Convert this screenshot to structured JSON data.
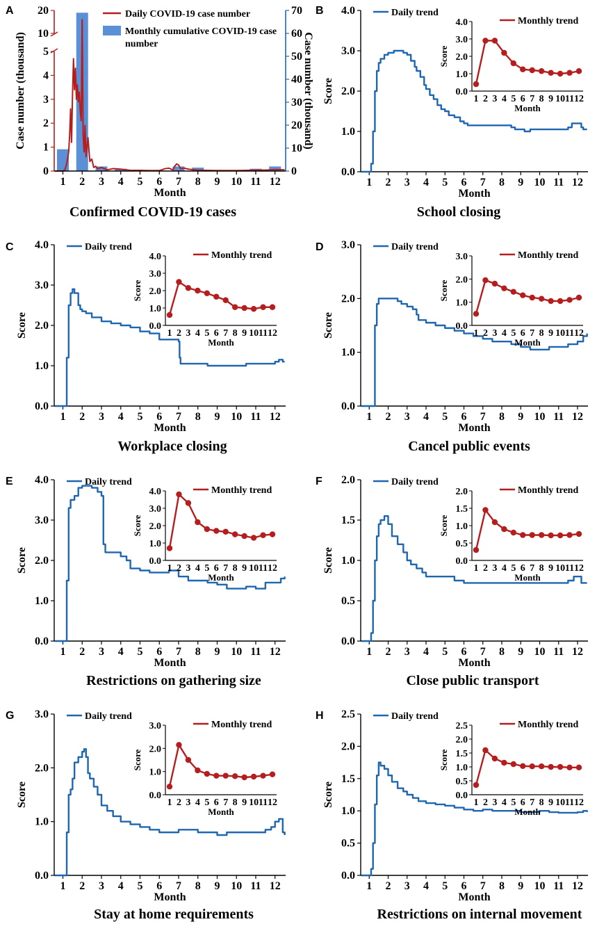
{
  "colors": {
    "daily": "#1f66b0",
    "monthly": "#b41e1e",
    "bar": "#5b8fd6",
    "axis": "#000000"
  },
  "chart_data": [
    {
      "panel": "A",
      "type": "bar",
      "caption": "Confirmed COVID-19 cases",
      "xlabel": "Month",
      "ylabel_left": "Case number (thousand)",
      "ylabel_right": "Case number (thousand)",
      "categories": [
        "1",
        "2",
        "3",
        "4",
        "5",
        "6",
        "7",
        "8",
        "9",
        "10",
        "11",
        "12"
      ],
      "left_ticks": [
        "0",
        "1",
        "2",
        "3",
        "4",
        "5",
        "10",
        "20"
      ],
      "right_ticks": [
        "0",
        "10",
        "20",
        "30",
        "40",
        "50",
        "60",
        "70"
      ],
      "right_ylim": [
        0,
        70
      ],
      "series": [
        {
          "name": "Daily  COVID-19 case number",
          "type": "line",
          "x": [
            0.6,
            0.8,
            1.0,
            1.1,
            1.2,
            1.3,
            1.35,
            1.4,
            1.45,
            1.5,
            1.55,
            1.6,
            1.65,
            1.7,
            1.75,
            1.8,
            1.85,
            1.9,
            1.95,
            2.0,
            2.05,
            2.1,
            2.15,
            2.2,
            2.3,
            2.4,
            2.5,
            2.6,
            2.7,
            2.8,
            3.0,
            3.3,
            3.6,
            4.0,
            4.5,
            5.0,
            5.5,
            6.0,
            6.3,
            6.5,
            6.7,
            6.8,
            6.9,
            7.0,
            7.1,
            7.3,
            7.5,
            7.8,
            8.0,
            8.5,
            9.0,
            9.5,
            10.0,
            10.5,
            11.0,
            11.5,
            12.0,
            12.5
          ],
          "values": [
            0,
            0,
            0,
            0.05,
            0.3,
            0.8,
            1.5,
            2.6,
            1.2,
            3.2,
            4.7,
            3.4,
            4.3,
            3.0,
            3.6,
            2.9,
            3.3,
            2.5,
            2.1,
            16.0,
            1.5,
            0.8,
            1.9,
            0.6,
            1.4,
            0.4,
            0.5,
            0.15,
            0.2,
            0.1,
            0.15,
            0.05,
            0.1,
            0.08,
            0.03,
            0.03,
            0.02,
            0.02,
            0.1,
            0.12,
            0.05,
            0.2,
            0.3,
            0.25,
            0.1,
            0.12,
            0.08,
            0.05,
            0.04,
            0.03,
            0.02,
            0.02,
            0.02,
            0.03,
            0.04,
            0.04,
            0.06,
            0.05
          ]
        },
        {
          "name": "Monthly cumulative COVID-19 case number",
          "type": "bar",
          "values": [
            9.5,
            69,
            2,
            1,
            0.1,
            0.2,
            2,
            1.5,
            0.4,
            0.3,
            1,
            2
          ]
        }
      ]
    },
    {
      "panel": "B",
      "type": "line",
      "caption": "School closing",
      "xlabel": "Month",
      "ylabel": "Score",
      "ymax": 4,
      "yticks": [
        "0.0",
        "1.0",
        "2.0",
        "3.0",
        "4.0"
      ],
      "inset_ymax": 4,
      "inset_yticks": [
        "0.0",
        "1.0",
        "2.0",
        "3.0",
        "4.0"
      ],
      "legend_daily": "Daily trend",
      "legend_monthly": "Monthly trend",
      "categories": [
        "1",
        "2",
        "3",
        "4",
        "5",
        "6",
        "7",
        "8",
        "9",
        "10",
        "11",
        "12"
      ],
      "daily": {
        "x": [
          0.6,
          1.0,
          1.1,
          1.2,
          1.3,
          1.4,
          1.5,
          1.6,
          1.8,
          2.0,
          2.3,
          2.5,
          2.8,
          3.0,
          3.2,
          3.4,
          3.5,
          3.7,
          3.9,
          4.0,
          4.2,
          4.4,
          4.6,
          4.8,
          5.0,
          5.2,
          5.5,
          5.8,
          6.0,
          6.2,
          6.5,
          7.0,
          7.5,
          8.0,
          8.5,
          8.7,
          9.0,
          9.2,
          9.5,
          10.0,
          10.5,
          11.0,
          11.5,
          11.7,
          12.0,
          12.2,
          12.3,
          12.5
        ],
        "y": [
          0,
          0,
          0.2,
          1.0,
          2.0,
          2.5,
          2.7,
          2.8,
          2.9,
          2.95,
          3.0,
          3.0,
          2.95,
          2.9,
          2.75,
          2.6,
          2.5,
          2.35,
          2.15,
          2.05,
          1.9,
          1.8,
          1.65,
          1.55,
          1.5,
          1.4,
          1.35,
          1.25,
          1.2,
          1.15,
          1.15,
          1.15,
          1.15,
          1.15,
          1.1,
          1.05,
          1.05,
          1.0,
          1.05,
          1.05,
          1.05,
          1.05,
          1.1,
          1.2,
          1.2,
          1.1,
          1.05,
          1.05
        ]
      },
      "monthly": [
        0.4,
        2.9,
        2.9,
        2.2,
        1.6,
        1.25,
        1.2,
        1.15,
        1.05,
        1.0,
        1.05,
        1.15
      ]
    },
    {
      "panel": "C",
      "type": "line",
      "caption": "Workplace closing",
      "xlabel": "Month",
      "ylabel": "Score",
      "ymax": 4,
      "yticks": [
        "0.0",
        "1.0",
        "2.0",
        "3.0",
        "4.0"
      ],
      "inset_ymax": 4,
      "inset_yticks": [
        "0.0",
        "1.0",
        "2.0",
        "3.0",
        "4.0"
      ],
      "legend_daily": "Daily trend",
      "legend_monthly": "Monthly trend",
      "categories": [
        "1",
        "2",
        "3",
        "4",
        "5",
        "6",
        "7",
        "8",
        "9",
        "10",
        "11",
        "12"
      ],
      "daily": {
        "x": [
          0.6,
          1.1,
          1.2,
          1.3,
          1.4,
          1.5,
          1.6,
          1.8,
          1.9,
          2.0,
          2.2,
          2.5,
          3.0,
          3.5,
          4.0,
          4.5,
          5.0,
          5.5,
          6.0,
          6.5,
          6.9,
          7.0,
          7.05,
          7.1,
          7.5,
          8.0,
          8.5,
          9.0,
          9.5,
          10.0,
          10.5,
          11.0,
          11.5,
          12.0,
          12.2,
          12.4,
          12.5
        ],
        "y": [
          0,
          0,
          1.2,
          2.5,
          2.8,
          2.9,
          2.8,
          2.5,
          2.4,
          2.35,
          2.3,
          2.2,
          2.1,
          2.05,
          2.0,
          1.95,
          1.85,
          1.8,
          1.65,
          1.65,
          1.65,
          1.6,
          1.2,
          1.05,
          1.05,
          1.05,
          1.0,
          1.0,
          1.0,
          1.0,
          1.05,
          1.05,
          1.05,
          1.1,
          1.15,
          1.1,
          1.1
        ]
      },
      "monthly": [
        0.6,
        2.5,
        2.15,
        2.0,
        1.85,
        1.65,
        1.45,
        1.05,
        1.0,
        0.95,
        1.05,
        1.05
      ]
    },
    {
      "panel": "D",
      "type": "line",
      "caption": "Cancel public events",
      "xlabel": "Month",
      "ylabel": "Score",
      "ymax": 3,
      "yticks": [
        "0.0",
        "1.0",
        "2.0",
        "3.0"
      ],
      "inset_ymax": 3,
      "inset_yticks": [
        "0.0",
        "1.0",
        "2.0",
        "3.0"
      ],
      "legend_daily": "Daily trend",
      "legend_monthly": "Monthly trend",
      "categories": [
        "1",
        "2",
        "3",
        "4",
        "5",
        "6",
        "7",
        "8",
        "9",
        "10",
        "11",
        "12"
      ],
      "daily": {
        "x": [
          0.6,
          1.2,
          1.3,
          1.4,
          1.5,
          2.0,
          2.5,
          2.7,
          3.0,
          3.3,
          3.5,
          3.6,
          4.0,
          4.5,
          5.0,
          5.5,
          6.0,
          6.5,
          7.0,
          7.5,
          8.0,
          8.5,
          9.0,
          9.5,
          10.0,
          10.5,
          11.0,
          11.5,
          12.0,
          12.3,
          12.5
        ],
        "y": [
          0,
          0,
          1.5,
          1.9,
          2.0,
          2.0,
          1.95,
          1.9,
          1.85,
          1.8,
          1.7,
          1.6,
          1.55,
          1.5,
          1.45,
          1.4,
          1.35,
          1.3,
          1.25,
          1.2,
          1.2,
          1.15,
          1.1,
          1.05,
          1.05,
          1.1,
          1.1,
          1.15,
          1.2,
          1.3,
          1.35
        ]
      },
      "monthly": [
        0.5,
        1.95,
        1.8,
        1.6,
        1.45,
        1.3,
        1.2,
        1.15,
        1.05,
        1.05,
        1.1,
        1.2
      ]
    },
    {
      "panel": "E",
      "type": "line",
      "caption": "Restrictions on gathering size",
      "xlabel": "Month",
      "ylabel": "Score",
      "ymax": 4,
      "yticks": [
        "0.0",
        "1.0",
        "2.0",
        "3.0",
        "4.0"
      ],
      "inset_ymax": 4,
      "inset_yticks": [
        "0.0",
        "1.0",
        "2.0",
        "3.0",
        "4.0"
      ],
      "legend_daily": "Daily trend",
      "legend_monthly": "Monthly trend",
      "categories": [
        "1",
        "2",
        "3",
        "4",
        "5",
        "6",
        "7",
        "8",
        "9",
        "10",
        "11",
        "12"
      ],
      "daily": {
        "x": [
          0.6,
          1.1,
          1.2,
          1.3,
          1.4,
          1.6,
          1.8,
          2.0,
          2.2,
          2.5,
          2.8,
          3.0,
          3.1,
          3.2,
          3.5,
          4.0,
          4.3,
          4.5,
          5.0,
          5.5,
          6.0,
          6.5,
          7.0,
          7.5,
          8.0,
          8.5,
          9.0,
          9.5,
          10.0,
          10.5,
          11.0,
          11.5,
          12.0,
          12.3,
          12.5
        ],
        "y": [
          0,
          0,
          1.5,
          3.3,
          3.5,
          3.6,
          3.8,
          3.85,
          3.85,
          3.8,
          3.7,
          3.6,
          2.4,
          2.2,
          2.2,
          2.1,
          2.0,
          1.8,
          1.75,
          1.7,
          1.7,
          1.75,
          1.6,
          1.5,
          1.5,
          1.45,
          1.4,
          1.3,
          1.3,
          1.35,
          1.3,
          1.45,
          1.45,
          1.55,
          1.6
        ]
      },
      "monthly": [
        0.7,
        3.8,
        3.3,
        2.2,
        1.8,
        1.7,
        1.65,
        1.5,
        1.4,
        1.3,
        1.45,
        1.5
      ]
    },
    {
      "panel": "F",
      "type": "line",
      "caption": "Close public transport",
      "xlabel": "Month",
      "ylabel": "Score",
      "ymax": 2,
      "yticks": [
        "0.0",
        "0.5",
        "1.0",
        "1.5",
        "2.0"
      ],
      "inset_ymax": 2,
      "inset_yticks": [
        "0.0",
        "0.5",
        "1.0",
        "1.5",
        "2.0"
      ],
      "legend_daily": "Daily trend",
      "legend_monthly": "Monthly trend",
      "categories": [
        "1",
        "2",
        "3",
        "4",
        "5",
        "6",
        "7",
        "8",
        "9",
        "10",
        "11",
        "12"
      ],
      "daily": {
        "x": [
          0.6,
          1.0,
          1.1,
          1.2,
          1.3,
          1.4,
          1.5,
          1.6,
          1.8,
          2.0,
          2.2,
          2.5,
          2.8,
          3.0,
          3.2,
          3.5,
          3.8,
          4.0,
          4.5,
          5.0,
          5.5,
          6.0,
          6.5,
          7.0,
          7.5,
          8.0,
          8.5,
          9.0,
          9.5,
          10.0,
          10.5,
          11.0,
          11.5,
          11.8,
          12.0,
          12.2,
          12.5
        ],
        "y": [
          0,
          0,
          0.1,
          0.5,
          1.0,
          1.3,
          1.45,
          1.5,
          1.55,
          1.45,
          1.3,
          1.2,
          1.1,
          1.0,
          0.95,
          0.9,
          0.85,
          0.8,
          0.8,
          0.8,
          0.75,
          0.72,
          0.72,
          0.72,
          0.72,
          0.72,
          0.72,
          0.72,
          0.72,
          0.72,
          0.72,
          0.72,
          0.75,
          0.8,
          0.8,
          0.72,
          0.72
        ]
      },
      "monthly": [
        0.3,
        1.45,
        1.1,
        0.9,
        0.8,
        0.73,
        0.73,
        0.73,
        0.72,
        0.72,
        0.73,
        0.76
      ]
    },
    {
      "panel": "G",
      "type": "line",
      "caption": "Stay at home requirements",
      "xlabel": "Month",
      "ylabel": "Score",
      "ymax": 3,
      "yticks": [
        "0.0",
        "1.0",
        "2.0",
        "3.0"
      ],
      "inset_ymax": 3,
      "inset_yticks": [
        "0.0",
        "1.0",
        "2.0",
        "3.0"
      ],
      "legend_daily": "Daily trend",
      "legend_monthly": "Monthly trend",
      "categories": [
        "1",
        "2",
        "3",
        "4",
        "5",
        "6",
        "7",
        "8",
        "9",
        "10",
        "11",
        "12"
      ],
      "daily": {
        "x": [
          0.6,
          1.1,
          1.2,
          1.3,
          1.4,
          1.5,
          1.6,
          1.8,
          2.0,
          2.1,
          2.2,
          2.3,
          2.4,
          2.6,
          2.8,
          3.0,
          3.3,
          3.6,
          4.0,
          4.5,
          5.0,
          5.5,
          6.0,
          6.5,
          7.0,
          7.5,
          8.0,
          8.5,
          9.0,
          9.5,
          10.0,
          10.5,
          11.0,
          11.5,
          11.8,
          12.0,
          12.2,
          12.4,
          12.5
        ],
        "y": [
          0,
          0,
          0.8,
          1.5,
          1.6,
          1.8,
          2.1,
          2.2,
          2.3,
          2.35,
          2.2,
          1.9,
          1.8,
          1.65,
          1.5,
          1.3,
          1.2,
          1.1,
          1.0,
          0.95,
          0.9,
          0.85,
          0.8,
          0.8,
          0.85,
          0.85,
          0.8,
          0.8,
          0.75,
          0.8,
          0.8,
          0.8,
          0.8,
          0.85,
          0.9,
          1.0,
          1.05,
          0.8,
          0.75
        ]
      },
      "monthly": [
        0.35,
        2.15,
        1.5,
        1.05,
        0.9,
        0.82,
        0.82,
        0.8,
        0.75,
        0.78,
        0.82,
        0.88
      ]
    },
    {
      "panel": "H",
      "type": "line",
      "caption": "Restrictions on internal movement",
      "xlabel": "Month",
      "ylabel": "Score",
      "ymax": 2.5,
      "yticks": [
        "0.0",
        "0.5",
        "1.0",
        "1.5",
        "2.0",
        "2.5"
      ],
      "inset_ymax": 2.5,
      "inset_yticks": [
        "0.0",
        "0.5",
        "1.0",
        "1.5",
        "2.0",
        "2.5"
      ],
      "legend_daily": "Daily trend",
      "legend_monthly": "Monthly trend",
      "categories": [
        "1",
        "2",
        "3",
        "4",
        "5",
        "6",
        "7",
        "8",
        "9",
        "10",
        "11",
        "12"
      ],
      "daily": {
        "x": [
          0.6,
          1.0,
          1.1,
          1.2,
          1.3,
          1.4,
          1.5,
          1.6,
          1.8,
          2.0,
          2.2,
          2.5,
          2.8,
          3.0,
          3.3,
          3.6,
          4.0,
          4.5,
          5.0,
          5.5,
          6.0,
          6.5,
          7.0,
          7.5,
          8.0,
          8.5,
          9.0,
          9.5,
          10.0,
          10.5,
          11.0,
          11.5,
          12.0,
          12.3,
          12.5
        ],
        "y": [
          0,
          0,
          0.1,
          0.5,
          1.1,
          1.55,
          1.75,
          1.7,
          1.65,
          1.55,
          1.45,
          1.35,
          1.3,
          1.25,
          1.2,
          1.15,
          1.12,
          1.1,
          1.08,
          1.05,
          1.02,
          1.0,
          1.02,
          1.0,
          1.0,
          1.0,
          0.98,
          0.98,
          1.0,
          0.98,
          0.97,
          0.97,
          0.98,
          1.0,
          0.98
        ]
      },
      "monthly": [
        0.35,
        1.6,
        1.3,
        1.15,
        1.1,
        1.03,
        1.02,
        1.02,
        1.0,
        1.0,
        0.98,
        0.98
      ]
    }
  ]
}
